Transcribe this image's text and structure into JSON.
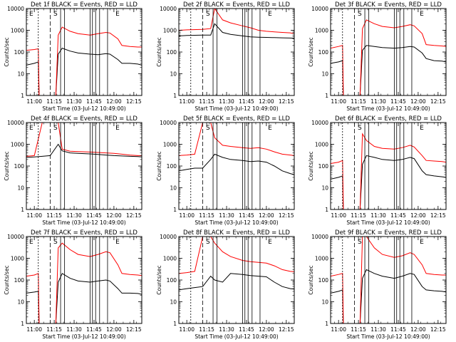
{
  "chart_data": {
    "type": "line",
    "xlabel": "Start Time (03-Jul-12 10:49:00)",
    "ylabel": "Counts/sec",
    "yscale": "log",
    "ylim": [
      1,
      10000
    ],
    "xlim": [
      10.9,
      12.35
    ],
    "x_ticks": [
      11.0,
      11.25,
      11.5,
      11.75,
      12.0,
      12.25
    ],
    "x_tick_labels": [
      "11:00",
      "11:15",
      "11:30",
      "11:45",
      "12:00",
      "12:15"
    ],
    "y_ticks": [
      1,
      10,
      100,
      1000,
      10000
    ],
    "y_tick_labels": [
      "1",
      "10",
      "100",
      "1000",
      "10000"
    ],
    "series_colors": {
      "events": "#000000",
      "lld": "#ff0000"
    },
    "panels": [
      {
        "title": "Det 1f BLACK = Events, RED = LLD",
        "marker_labels": [
          "E",
          "S",
          "E"
        ],
        "series": [
          {
            "x": [
              10.9,
              11.0,
              11.05,
              11.06,
              11.2,
              11.27,
              11.3,
              11.35,
              11.45,
              11.55,
              11.7,
              11.8,
              11.9,
              11.95,
              12.05,
              12.1,
              12.2,
              12.3,
              12.35
            ],
            "values": [
              25,
              30,
              35,
              0.9,
              0.9,
              0.9,
              80,
              150,
              110,
              90,
              80,
              75,
              85,
              80,
              45,
              30,
              30,
              28,
              25
            ]
          },
          {
            "x": [
              10.9,
              11.0,
              11.05,
              11.06,
              11.2,
              11.27,
              11.3,
              11.35,
              11.45,
              11.55,
              11.7,
              11.8,
              11.9,
              11.95,
              12.05,
              12.1,
              12.2,
              12.3,
              12.35
            ],
            "values": [
              120,
              130,
              140,
              0.9,
              0.9,
              0.9,
              600,
              1400,
              900,
              700,
              600,
              700,
              800,
              750,
              400,
              200,
              180,
              170,
              170
            ]
          }
        ]
      },
      {
        "title": "Det 2f BLACK = Events, RED = LLD",
        "marker_labels": [
          "S",
          "E"
        ],
        "series": [
          {
            "x": [
              10.9,
              11.0,
              11.2,
              11.3,
              11.35,
              11.45,
              11.55,
              11.7,
              11.8,
              11.9,
              12.0,
              12.1,
              12.2,
              12.3,
              12.35
            ],
            "values": [
              550,
              580,
              600,
              600,
              2000,
              800,
              650,
              550,
              500,
              480,
              470,
              460,
              450,
              440,
              430
            ]
          },
          {
            "x": [
              10.9,
              11.0,
              11.2,
              11.3,
              11.35,
              11.45,
              11.55,
              11.7,
              11.8,
              11.9,
              12.0,
              12.1,
              12.2,
              12.3,
              12.35
            ],
            "values": [
              1000,
              1050,
              1100,
              1200,
              10000,
              3000,
              2200,
              1600,
              1300,
              1000,
              900,
              850,
              800,
              760,
              700
            ]
          }
        ]
      },
      {
        "title": "Det 3f BLACK = Events, RED = LLD",
        "marker_labels": [
          "S",
          "E"
        ],
        "series": [
          {
            "x": [
              10.9,
              11.0,
              11.05,
              11.06,
              11.2,
              11.27,
              11.3,
              11.35,
              11.45,
              11.55,
              11.7,
              11.8,
              11.9,
              11.95,
              12.05,
              12.1,
              12.2,
              12.3,
              12.35
            ],
            "values": [
              30,
              35,
              40,
              0.9,
              0.9,
              0.9,
              120,
              200,
              180,
              160,
              150,
              160,
              180,
              170,
              90,
              50,
              40,
              38,
              35
            ]
          },
          {
            "x": [
              10.9,
              11.0,
              11.05,
              11.06,
              11.2,
              11.27,
              11.3,
              11.35,
              11.45,
              11.55,
              11.7,
              11.8,
              11.9,
              11.95,
              12.05,
              12.1,
              12.2,
              12.3,
              12.35
            ],
            "values": [
              150,
              180,
              200,
              0.9,
              0.9,
              0.9,
              1200,
              3000,
              2000,
              1500,
              1300,
              1500,
              1800,
              1600,
              700,
              220,
              200,
              190,
              180
            ]
          }
        ]
      },
      {
        "title": "Det 4f BLACK = Events, RED = LLD",
        "marker_labels": [
          "E",
          "S",
          "E"
        ],
        "series": [
          {
            "x": [
              10.9,
              11.0,
              11.1,
              11.2,
              11.3,
              11.35,
              11.45,
              11.55,
              11.7,
              11.8,
              11.9,
              12.0,
              12.1,
              12.2,
              12.3,
              12.35
            ],
            "values": [
              250,
              260,
              280,
              300,
              1000,
              500,
              400,
              380,
              360,
              340,
              320,
              300,
              290,
              280,
              270,
              260
            ]
          },
          {
            "x": [
              10.9,
              11.0,
              11.1,
              11.2,
              11.3,
              11.35,
              11.45,
              11.55,
              11.7,
              11.8,
              11.9,
              12.0,
              12.1,
              12.2,
              12.3,
              12.35
            ],
            "values": [
              280,
              300,
              10000,
              10000,
              10000,
              600,
              480,
              460,
              440,
              420,
              400,
              380,
              350,
              320,
              300,
              300
            ]
          }
        ]
      },
      {
        "title": "Det 5f BLACK = Events, RED = LLD",
        "marker_labels": [
          "S",
          "E"
        ],
        "series": [
          {
            "x": [
              10.9,
              11.0,
              11.1,
              11.2,
              11.3,
              11.35,
              11.45,
              11.55,
              11.7,
              11.8,
              11.9,
              12.0,
              12.1,
              12.2,
              12.3,
              12.35
            ],
            "values": [
              60,
              70,
              80,
              80,
              200,
              350,
              250,
              200,
              180,
              160,
              170,
              150,
              100,
              60,
              45,
              40
            ]
          },
          {
            "x": [
              10.9,
              11.0,
              11.1,
              11.2,
              11.3,
              11.35,
              11.45,
              11.55,
              11.7,
              11.8,
              11.9,
              12.0,
              12.1,
              12.2,
              12.3,
              12.35
            ],
            "values": [
              300,
              320,
              350,
              10000,
              10000,
              2000,
              900,
              800,
              700,
              650,
              700,
              600,
              450,
              350,
              320,
              300
            ]
          }
        ]
      },
      {
        "title": "Det 6f BLACK = Events, RED = LLD",
        "marker_labels": [
          "S",
          "E"
        ],
        "series": [
          {
            "x": [
              10.9,
              11.0,
              11.05,
              11.06,
              11.2,
              11.27,
              11.3,
              11.35,
              11.45,
              11.55,
              11.7,
              11.8,
              11.9,
              11.95,
              12.05,
              12.1,
              12.2,
              12.3,
              12.35
            ],
            "values": [
              25,
              30,
              35,
              0.9,
              0.9,
              0.9,
              120,
              300,
              250,
              200,
              180,
              200,
              250,
              220,
              60,
              40,
              35,
              32,
              30
            ]
          },
          {
            "x": [
              10.9,
              11.0,
              11.05,
              11.06,
              11.2,
              11.27,
              11.3,
              11.35,
              11.45,
              11.55,
              11.7,
              11.8,
              11.9,
              11.95,
              12.05,
              12.1,
              12.2,
              12.3,
              12.35
            ],
            "values": [
              130,
              150,
              180,
              0.9,
              0.9,
              0.9,
              3000,
              1500,
              800,
              650,
              600,
              700,
              900,
              750,
              300,
              180,
              170,
              160,
              150
            ]
          }
        ]
      },
      {
        "title": "Det 7f BLACK = Events, RED = LLD",
        "marker_labels": [
          "E",
          "S",
          "E"
        ],
        "series": [
          {
            "x": [
              10.9,
              11.0,
              11.05,
              11.06,
              11.2,
              11.27,
              11.3,
              11.35,
              11.45,
              11.55,
              11.7,
              11.8,
              11.9,
              11.95,
              12.05,
              12.1,
              12.2,
              12.3,
              12.35
            ],
            "values": [
              25,
              28,
              30,
              0.9,
              0.9,
              0.9,
              80,
              200,
              120,
              90,
              80,
              90,
              100,
              90,
              40,
              25,
              25,
              24,
              22
            ]
          },
          {
            "x": [
              10.9,
              11.0,
              11.05,
              11.06,
              11.2,
              11.27,
              11.3,
              11.35,
              11.45,
              11.55,
              11.7,
              11.8,
              11.9,
              11.95,
              12.05,
              12.1,
              12.2,
              12.3,
              12.35
            ],
            "values": [
              150,
              170,
              200,
              0.9,
              0.9,
              0.9,
              3000,
              5000,
              2500,
              1500,
              1200,
              1500,
              2000,
              1800,
              500,
              200,
              180,
              170,
              160
            ]
          }
        ]
      },
      {
        "title": "Det 8f BLACK = Events, RED = LLD",
        "marker_labels": [
          "S",
          "E"
        ],
        "series": [
          {
            "x": [
              10.9,
              11.0,
              11.1,
              11.2,
              11.3,
              11.35,
              11.45,
              11.55,
              11.7,
              11.8,
              11.9,
              12.0,
              12.1,
              12.2,
              12.3,
              12.35
            ],
            "values": [
              35,
              40,
              45,
              50,
              150,
              100,
              80,
              200,
              180,
              160,
              150,
              140,
              80,
              50,
              40,
              38
            ]
          },
          {
            "x": [
              10.9,
              11.0,
              11.1,
              11.2,
              11.3,
              11.35,
              11.45,
              11.55,
              11.7,
              11.8,
              11.9,
              12.0,
              12.1,
              12.2,
              12.3,
              12.35
            ],
            "values": [
              200,
              220,
              250,
              10000,
              10000,
              5000,
              2000,
              1200,
              800,
              700,
              650,
              600,
              450,
              300,
              250,
              240
            ]
          }
        ]
      },
      {
        "title": "Det 9f BLACK = Events, RED = LLD",
        "marker_labels": [
          "S",
          "E"
        ],
        "series": [
          {
            "x": [
              10.9,
              11.0,
              11.05,
              11.06,
              11.2,
              11.27,
              11.3,
              11.35,
              11.45,
              11.55,
              11.7,
              11.8,
              11.9,
              11.95,
              12.05,
              12.1,
              12.2,
              12.3,
              12.35
            ],
            "values": [
              25,
              30,
              35,
              0.9,
              0.9,
              0.9,
              120,
              300,
              200,
              150,
              120,
              150,
              200,
              180,
              50,
              35,
              32,
              30,
              28
            ]
          },
          {
            "x": [
              10.9,
              11.0,
              11.05,
              11.06,
              11.2,
              11.27,
              11.3,
              11.35,
              11.45,
              11.55,
              11.7,
              11.8,
              11.9,
              11.95,
              12.05,
              12.1,
              12.2,
              12.3,
              12.35
            ],
            "values": [
              150,
              180,
              200,
              0.9,
              0.9,
              0.9,
              10000,
              10000,
              3000,
              1500,
              1100,
              1300,
              1800,
              1500,
              500,
              200,
              180,
              170,
              170
            ]
          }
        ]
      }
    ]
  }
}
